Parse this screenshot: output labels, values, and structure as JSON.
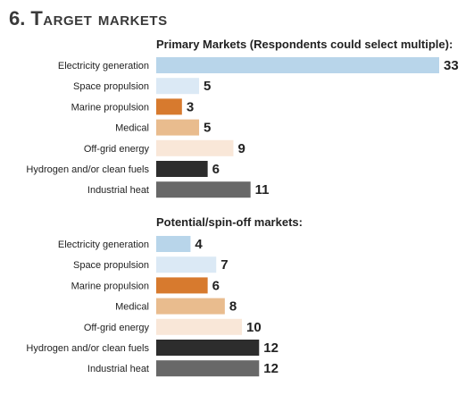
{
  "page": {
    "section_number": "6.",
    "section_title": "Target markets"
  },
  "chart_data": [
    {
      "type": "bar",
      "orientation": "horizontal",
      "title": "Primary Markets (Respondents could select multiple):",
      "categories": [
        "Electricity generation",
        "Space propulsion",
        "Marine propulsion",
        "Medical",
        "Off-grid energy",
        "Hydrogen and/or clean fuels",
        "Industrial heat"
      ],
      "values": [
        33,
        5,
        3,
        5,
        9,
        6,
        11
      ],
      "colors": [
        "#b8d5ea",
        "#dbe9f5",
        "#d77a2e",
        "#e9bc8e",
        "#f9e7d8",
        "#2d2d2d",
        "#686868"
      ],
      "xlim": [
        0,
        33
      ]
    },
    {
      "type": "bar",
      "orientation": "horizontal",
      "title": "Potential/spin-off markets:",
      "categories": [
        "Electricity generation",
        "Space propulsion",
        "Marine propulsion",
        "Medical",
        "Off-grid energy",
        "Hydrogen and/or clean fuels",
        "Industrial heat"
      ],
      "values": [
        4,
        7,
        6,
        8,
        10,
        12,
        12
      ],
      "colors": [
        "#b8d5ea",
        "#dbe9f5",
        "#d77a2e",
        "#e9bc8e",
        "#f9e7d8",
        "#2d2d2d",
        "#686868"
      ],
      "xlim": [
        0,
        33
      ]
    }
  ]
}
